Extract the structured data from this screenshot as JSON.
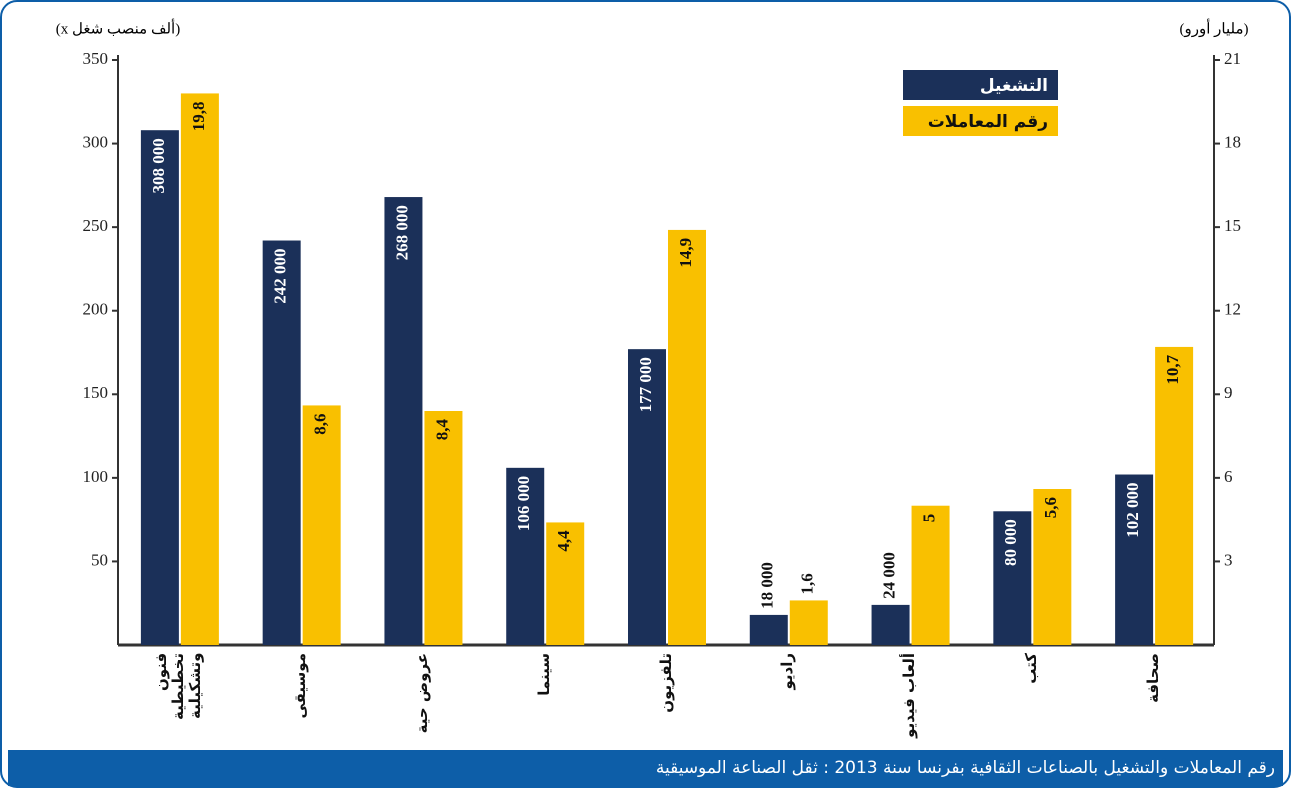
{
  "chart_data": {
    "type": "bar",
    "caption": "رقم المعاملات والتشغيل بالصناعات الثقافية بفرنسا سنة 2013 : ثقل الصناعة الموسيقية",
    "y_label": "(x ألف منصب شغل)",
    "y2_label": "(مليار أورو)",
    "categories": [
      "فنون تخطيطية وتشكيلية",
      "موسيقى",
      "عروض حية",
      "سينما",
      "تلفزيون",
      "راديو",
      "ألعاب فيديو",
      "كتب",
      "صحافة"
    ],
    "series": [
      {
        "name": "التشغيل",
        "color": "#1b3059",
        "values": [
          308,
          242,
          268,
          106,
          177,
          18,
          24,
          80,
          102
        ],
        "value_labels": [
          "308 000",
          "242 000",
          "268 000",
          "106 000",
          "177 000",
          "18 000",
          "24 000",
          "80 000",
          "102 000"
        ]
      },
      {
        "name": "رقم المعاملات",
        "color": "#f9c000",
        "axis": "y2",
        "values": [
          19.8,
          8.6,
          8.4,
          4.4,
          14.9,
          1.6,
          5,
          5.6,
          10.7
        ],
        "value_labels": [
          "19,8",
          "8,6",
          "8,4",
          "4,4",
          "14,9",
          "1,6",
          "5",
          "5,6",
          "10,7"
        ]
      }
    ],
    "ylim": [
      0,
      350
    ],
    "yticks": [
      50,
      100,
      150,
      200,
      250,
      300,
      350
    ],
    "y2lim": [
      0,
      21
    ],
    "y2ticks": [
      3,
      6,
      9,
      12,
      15,
      18,
      21
    ],
    "legend": "top-right"
  }
}
